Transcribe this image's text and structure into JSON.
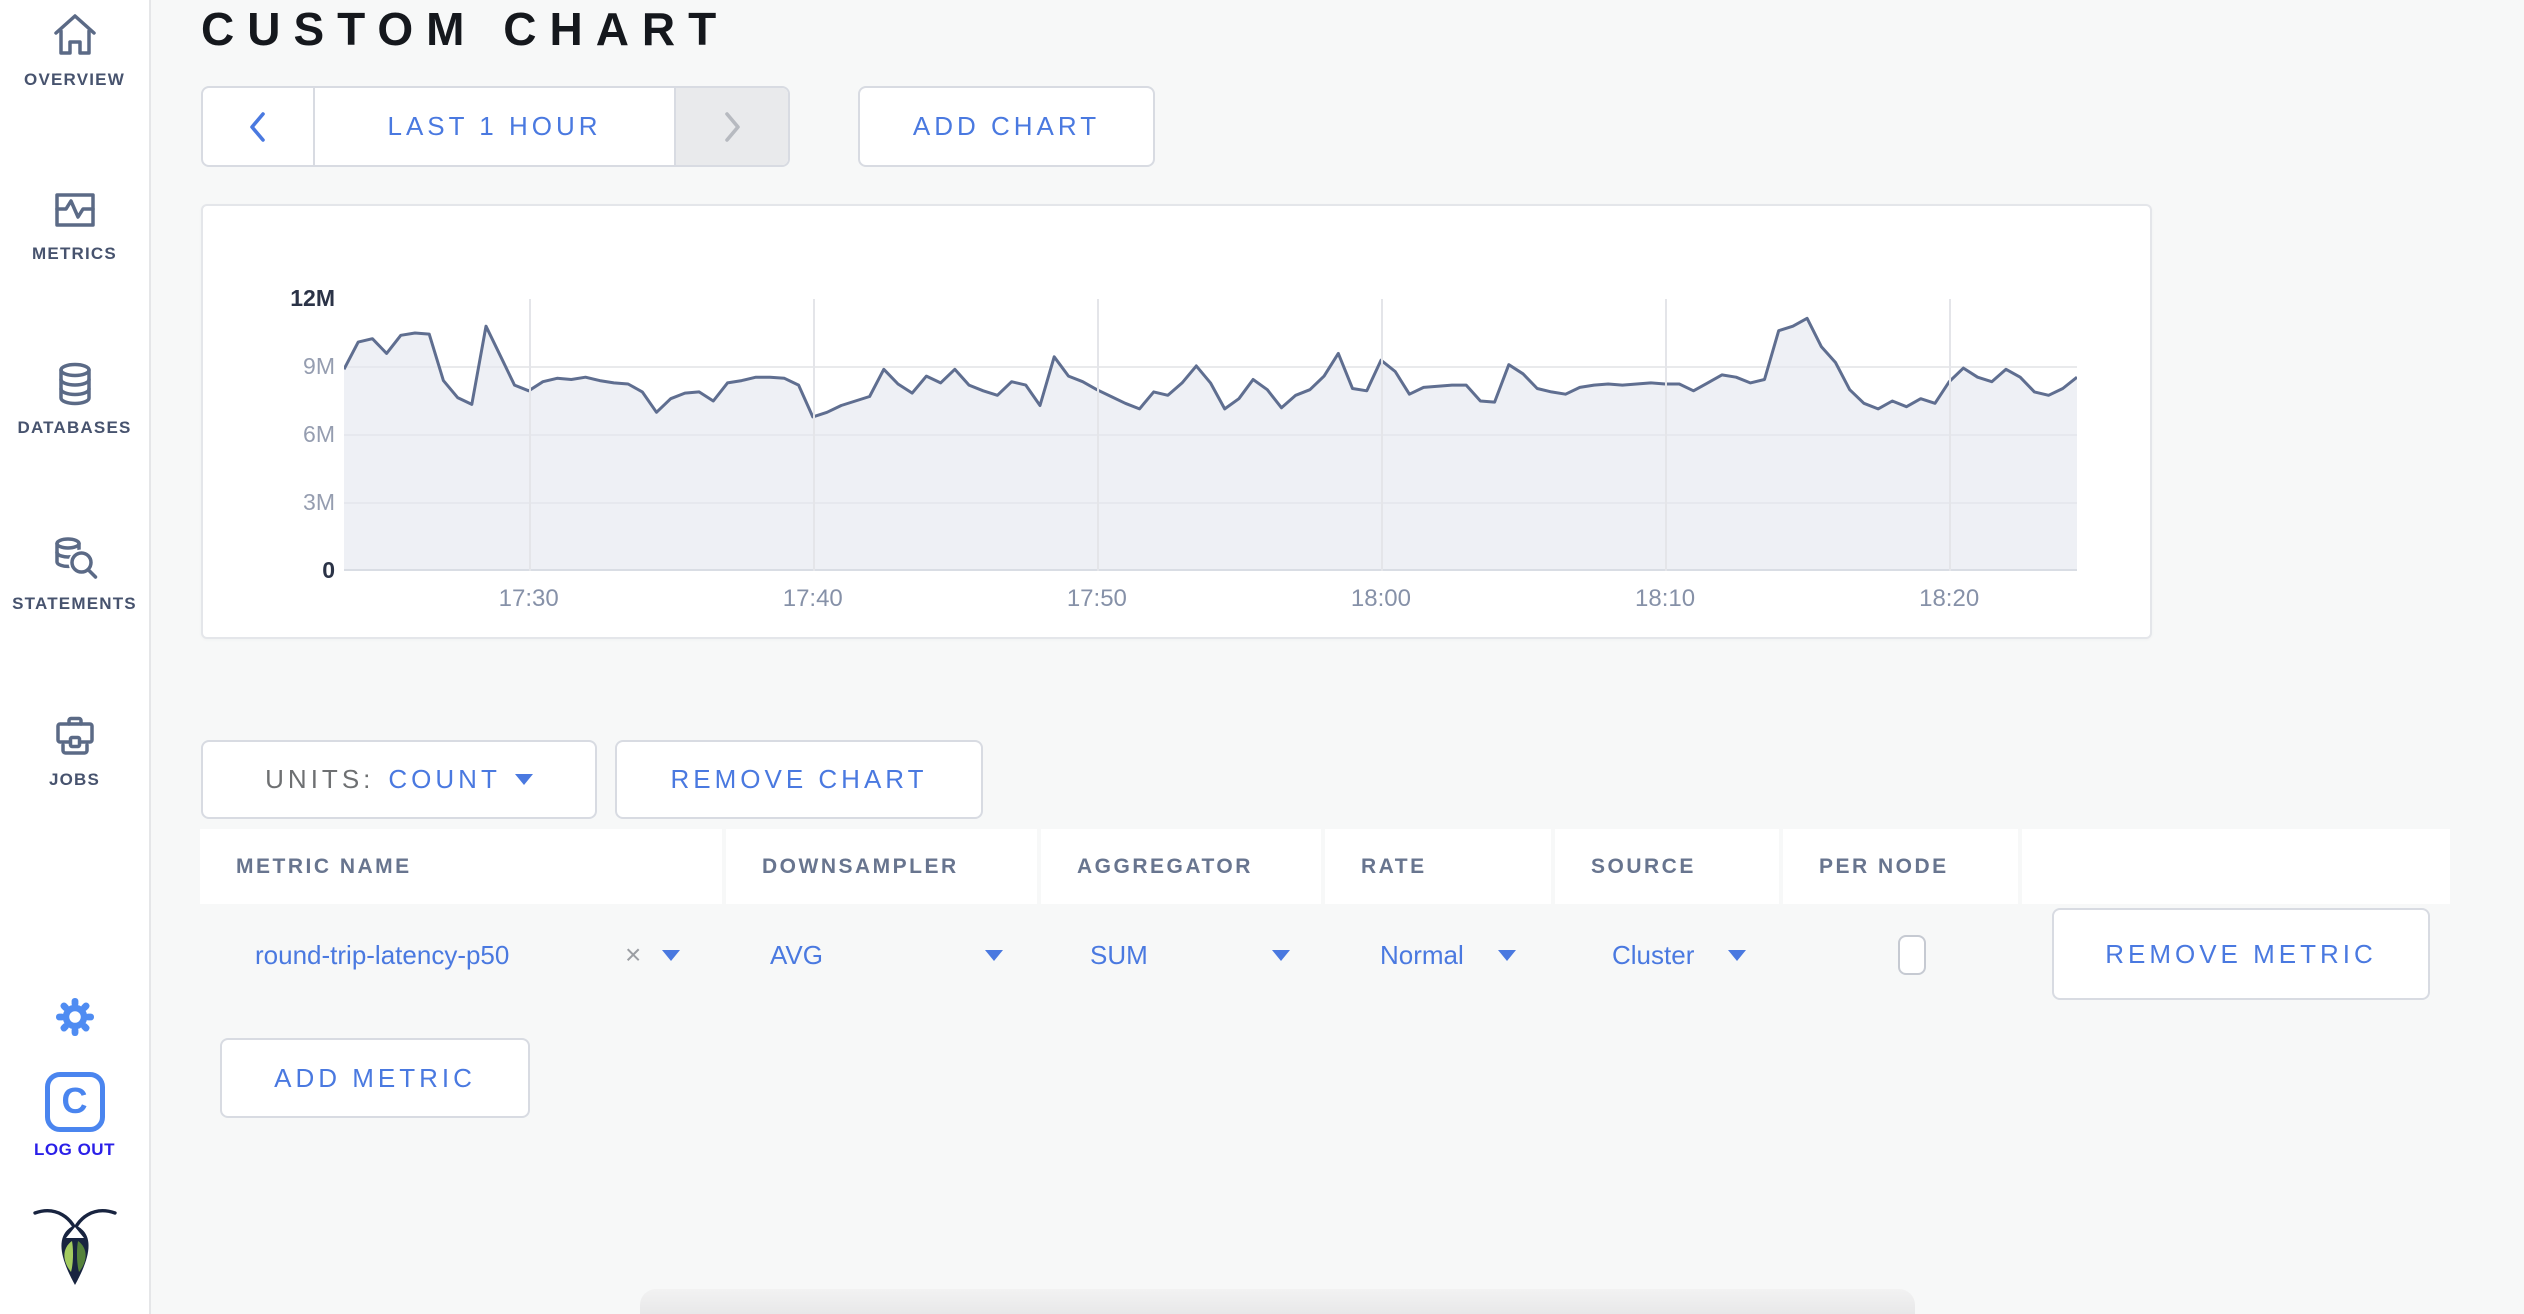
{
  "sidebar": {
    "items": [
      {
        "label": "OVERVIEW"
      },
      {
        "label": "METRICS"
      },
      {
        "label": "DATABASES"
      },
      {
        "label": "STATEMENTS"
      },
      {
        "label": "JOBS"
      }
    ],
    "logo_letter": "C",
    "logout_label": "LOG OUT"
  },
  "header": {
    "title": "CUSTOM CHART"
  },
  "toolbar": {
    "time_range_label": "LAST 1 HOUR",
    "add_chart_label": "ADD CHART"
  },
  "chart_controls": {
    "units_label": "UNITS:",
    "units_value": "COUNT",
    "remove_chart_label": "REMOVE CHART",
    "add_metric_label": "ADD METRIC"
  },
  "metrics_table": {
    "columns": [
      "METRIC NAME",
      "DOWNSAMPLER",
      "AGGREGATOR",
      "RATE",
      "SOURCE",
      "PER NODE"
    ],
    "row": {
      "metric_name": "round-trip-latency-p50",
      "remove_glyph": "×",
      "downsampler": "AVG",
      "aggregator": "SUM",
      "rate": "Normal",
      "source": "Cluster",
      "per_node_checked": false,
      "remove_label": "REMOVE METRIC"
    }
  },
  "chart_data": {
    "type": "area",
    "title": "",
    "units": "count",
    "ylim": [
      0,
      12000000
    ],
    "y_ticks_top_down": [
      "12M",
      "9M",
      "6M",
      "3M",
      "0"
    ],
    "x_ticks": [
      "17:30",
      "17:40",
      "17:50",
      "18:00",
      "18:10",
      "18:20"
    ],
    "x_tick_indices": [
      13,
      33,
      53,
      73,
      93,
      113
    ],
    "sample_interval": "30s",
    "grid": true,
    "legend": "none",
    "values_millions": [
      8.9,
      10.1,
      10.25,
      9.6,
      10.4,
      10.5,
      10.45,
      8.4,
      7.65,
      7.35,
      10.8,
      9.5,
      8.2,
      7.95,
      8.35,
      8.5,
      8.45,
      8.55,
      8.4,
      8.3,
      8.25,
      7.9,
      7.0,
      7.6,
      7.85,
      7.9,
      7.5,
      8.3,
      8.4,
      8.55,
      8.55,
      8.5,
      8.2,
      6.8,
      7.0,
      7.3,
      7.5,
      7.7,
      8.9,
      8.25,
      7.85,
      8.6,
      8.3,
      8.9,
      8.2,
      7.95,
      7.75,
      8.35,
      8.2,
      7.3,
      9.45,
      8.6,
      8.35,
      8.0,
      7.7,
      7.4,
      7.15,
      7.9,
      7.75,
      8.3,
      9.05,
      8.3,
      7.15,
      7.6,
      8.45,
      8.0,
      7.2,
      7.75,
      8.0,
      8.6,
      9.6,
      8.05,
      7.95,
      9.3,
      8.8,
      7.8,
      8.1,
      8.15,
      8.2,
      8.2,
      7.5,
      7.45,
      9.1,
      8.7,
      8.05,
      7.9,
      7.8,
      8.1,
      8.2,
      8.25,
      8.2,
      8.25,
      8.3,
      8.25,
      8.25,
      7.95,
      8.3,
      8.65,
      8.55,
      8.3,
      8.45,
      10.6,
      10.8,
      11.15,
      9.9,
      9.2,
      8.0,
      7.4,
      7.15,
      7.5,
      7.25,
      7.6,
      7.4,
      8.35,
      8.95,
      8.55,
      8.35,
      8.9,
      8.55,
      7.9,
      7.75,
      8.05,
      8.55
    ]
  },
  "colors": {
    "accent_blue": "#4a79e0",
    "bright_blue": "#4f8cf2",
    "logout_blue": "#2a1fe8",
    "slate_icon": "#5b6a86",
    "chart_line": "#5f6e90",
    "chart_fill": "#eceef3",
    "page_bg": "#f7f8f8"
  }
}
